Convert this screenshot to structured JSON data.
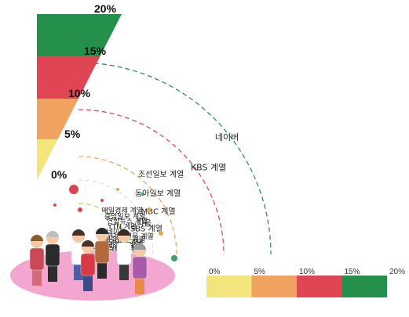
{
  "chart_data": {
    "type": "bar",
    "title": "",
    "xlabel": "",
    "ylabel": "",
    "ylim": [
      0,
      20
    ],
    "grid": true,
    "scale_ticks": [
      "0%",
      "5%",
      "10%",
      "15%",
      "20%"
    ],
    "scale_colors": [
      "#f1e57c",
      "#f0a261",
      "#e04553",
      "#25904c"
    ],
    "categories": [
      "네이버",
      "KBS 계열",
      "조선일보 계열",
      "동아일보 계열",
      "MBC 계열",
      "다음",
      "SBS 계열",
      "매일경제 계열",
      "중앙일보 계열",
      "연합뉴스 계열",
      "YTN 계열",
      "네이트",
      "한겨레신문 계열",
      "경향신문 계열",
      "한국일보 계열",
      "한국경제 계열",
      "국민일보 계열",
      "머니투데이 계열",
      "줌"
    ],
    "values": [
      18.5,
      14.5,
      10.5,
      8.5,
      7.5,
      6.5,
      5.6,
      4.9,
      4.5,
      4.2,
      3.8,
      3.4,
      3.1,
      2.8,
      2.5,
      2.2,
      1.9,
      1.6,
      1.3
    ]
  }
}
